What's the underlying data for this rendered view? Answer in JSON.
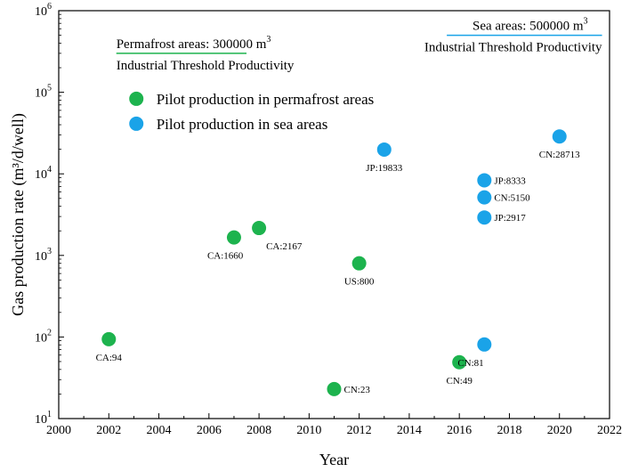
{
  "chart_data": {
    "type": "scatter",
    "xlabel": "Year",
    "ylabel": "Gas production rate (m³/d/well)",
    "xlim": [
      2000,
      2022
    ],
    "ylim_log10": [
      1,
      6
    ],
    "yscale": "log",
    "x_ticks": [
      2000,
      2002,
      2004,
      2006,
      2008,
      2010,
      2012,
      2014,
      2016,
      2018,
      2020,
      2022
    ],
    "y_ticks": [
      {
        "base": "10",
        "exp": "1"
      },
      {
        "base": "10",
        "exp": "2"
      },
      {
        "base": "10",
        "exp": "3"
      },
      {
        "base": "10",
        "exp": "4"
      },
      {
        "base": "10",
        "exp": "5"
      },
      {
        "base": "10",
        "exp": "6"
      }
    ],
    "legend_position": "upper-left",
    "series": [
      {
        "name": "Pilot production in permafrost areas",
        "color": "#1db34e",
        "points": [
          {
            "x": 2002,
            "y": 94,
            "label": "CA:94",
            "label_pos": "below"
          },
          {
            "x": 2007,
            "y": 1660,
            "label": "CA:1660",
            "label_pos": "below-left"
          },
          {
            "x": 2008,
            "y": 2167,
            "label": "CA:2167",
            "label_pos": "below-right"
          },
          {
            "x": 2011,
            "y": 23,
            "label": "CN:23",
            "label_pos": "right"
          },
          {
            "x": 2012,
            "y": 800,
            "label": "US:800",
            "label_pos": "below"
          },
          {
            "x": 2016,
            "y": 49,
            "label": "CN:49",
            "label_pos": "below"
          }
        ]
      },
      {
        "name": "Pilot production in sea areas",
        "color": "#1aa3e8",
        "points": [
          {
            "x": 2013,
            "y": 19833,
            "label": "JP:19833",
            "label_pos": "below"
          },
          {
            "x": 2017,
            "y": 8333,
            "label": "JP:8333",
            "label_pos": "right"
          },
          {
            "x": 2017,
            "y": 5150,
            "label": "CN:5150",
            "label_pos": "right"
          },
          {
            "x": 2017,
            "y": 2917,
            "label": "JP:2917",
            "label_pos": "right"
          },
          {
            "x": 2017,
            "y": 81,
            "label": "CN:81",
            "label_pos": "below-left"
          },
          {
            "x": 2020,
            "y": 28713,
            "label": "CN:28713",
            "label_pos": "below"
          }
        ]
      }
    ],
    "threshold_lines": [
      {
        "name": "permafrost",
        "value": 300000,
        "x_range": [
          2002.3,
          2007.5
        ],
        "color": "#1db34e",
        "line1": "Permafrost areas: 300000 m",
        "line1_sup": "3",
        "line2": "Industrial Threshold Productivity"
      },
      {
        "name": "sea",
        "value": 500000,
        "x_range": [
          2015.5,
          2021.7
        ],
        "color": "#1aa3e8",
        "line1": "Sea areas: 500000 m",
        "line1_sup": "3",
        "line2": "Industrial Threshold Productivity"
      }
    ]
  }
}
